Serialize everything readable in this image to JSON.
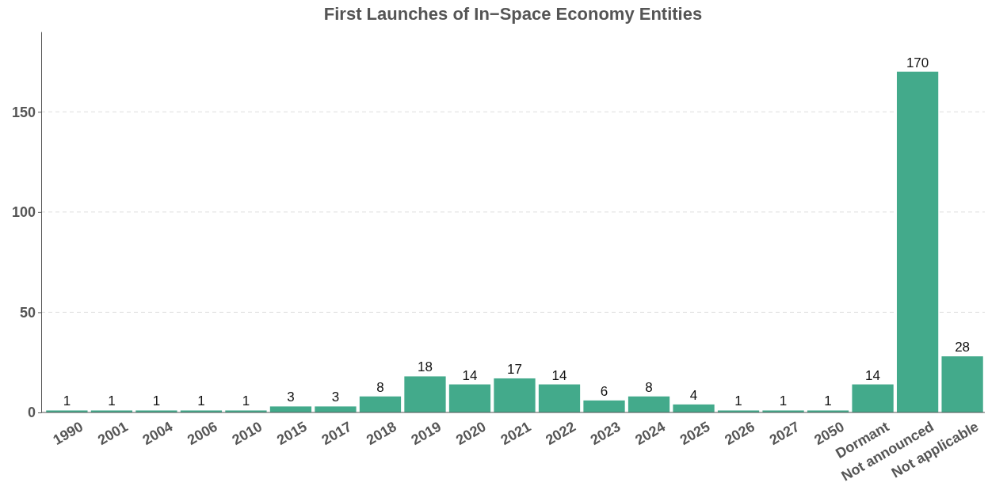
{
  "chart_data": {
    "type": "bar",
    "title": "First Launches of In−Space Economy Entities",
    "categories": [
      "1990",
      "2001",
      "2004",
      "2006",
      "2010",
      "2015",
      "2017",
      "2018",
      "2019",
      "2020",
      "2021",
      "2022",
      "2023",
      "2024",
      "2025",
      "2026",
      "2027",
      "2050",
      "Dormant",
      "Not announced",
      "Not applicable"
    ],
    "values": [
      1,
      1,
      1,
      1,
      1,
      3,
      3,
      8,
      18,
      14,
      17,
      14,
      6,
      8,
      4,
      1,
      1,
      1,
      14,
      170,
      28
    ],
    "color": "#43aa8b",
    "ylim": [
      0,
      190
    ],
    "yticks": [
      0,
      50,
      100,
      150
    ],
    "grid": "y",
    "data_labels": true
  }
}
